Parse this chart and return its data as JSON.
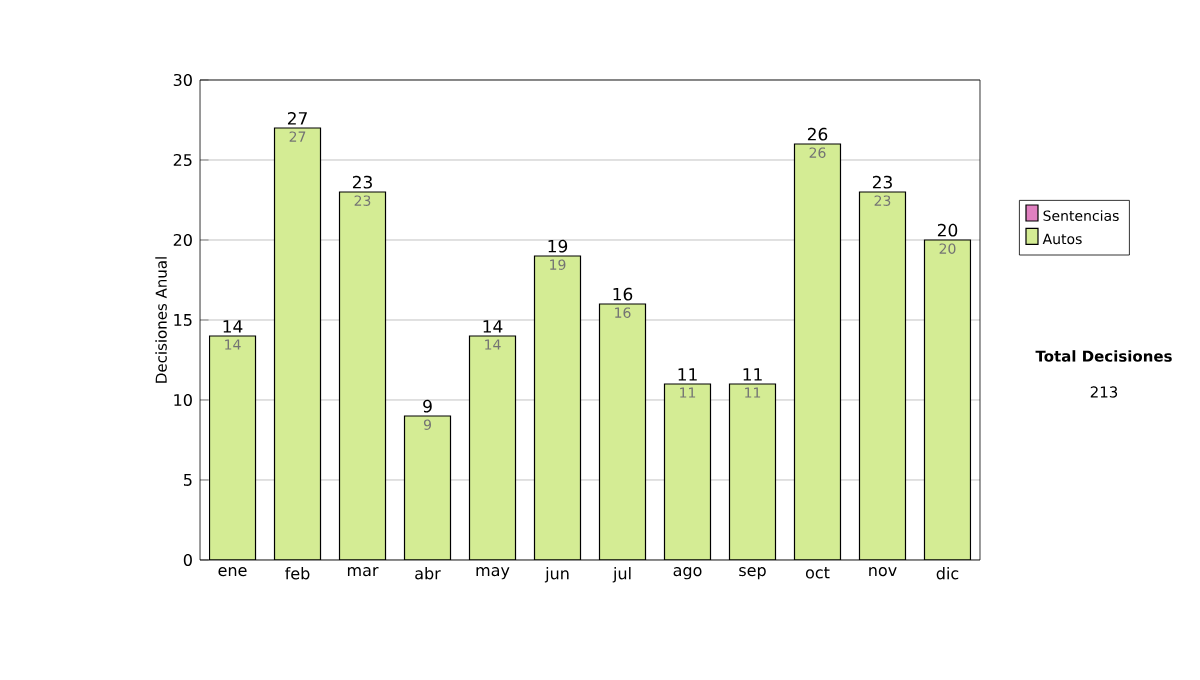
{
  "chart_data": {
    "type": "bar",
    "ylabel": "Decisiones Anual",
    "categories": [
      "ene",
      "feb",
      "mar",
      "abr",
      "may",
      "jun",
      "jul",
      "ago",
      "sep",
      "oct",
      "nov",
      "dic"
    ],
    "stacked": true,
    "series": [
      {
        "name": "Sentencias",
        "color": "#e080c0",
        "values": [
          0,
          0,
          0,
          0,
          0,
          0,
          0,
          0,
          0,
          0,
          0,
          0
        ]
      },
      {
        "name": "Autos",
        "color": "#d4ec94",
        "values": [
          14,
          27,
          23,
          9,
          14,
          19,
          16,
          11,
          11,
          26,
          23,
          20
        ],
        "value_labels": [
          "14",
          "27",
          "23",
          "9",
          "14",
          "19",
          "16",
          "11",
          "11",
          "26",
          "23",
          "20"
        ]
      }
    ],
    "totals": [
      "14",
      "27",
      "23",
      "9",
      "14",
      "19",
      "16",
      "11",
      "11",
      "26",
      "23",
      "20"
    ],
    "ylim": [
      0,
      30
    ],
    "yticks": [
      0,
      5,
      10,
      15,
      20,
      25,
      30
    ],
    "grid": "y",
    "legend": "right",
    "annotations": [
      "Total Decisiones",
      "213"
    ]
  }
}
